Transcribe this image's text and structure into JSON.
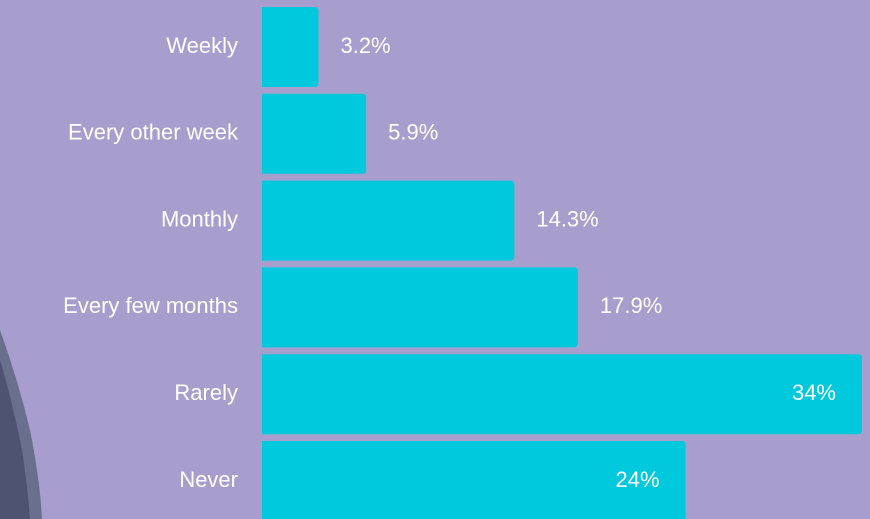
{
  "chart_data": {
    "type": "hbar",
    "categories": [
      "Weekly",
      "Every other week",
      "Monthly",
      "Every few months",
      "Rarely",
      "Never"
    ],
    "values": [
      3.2,
      5.9,
      14.3,
      17.9,
      34,
      24
    ],
    "value_labels": [
      "3.2%",
      "5.9%",
      "14.3%",
      "17.9%",
      "34%",
      "24%"
    ],
    "color": "#00c9dd"
  }
}
